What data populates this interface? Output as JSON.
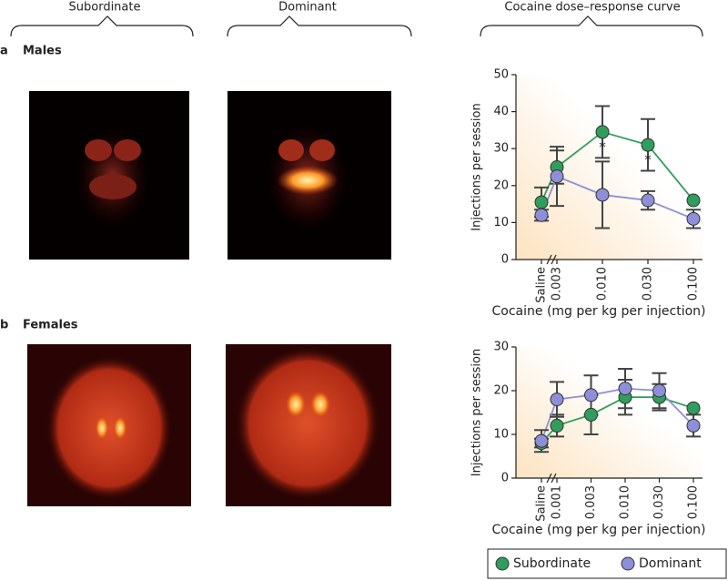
{
  "headers": [
    "Subordinate",
    "Dominant",
    "Cocaine dose–response curve"
  ],
  "panels": [
    {
      "letter": "a",
      "label": "Males"
    },
    {
      "letter": "b",
      "label": "Females"
    }
  ],
  "chart_data": [
    {
      "type": "line",
      "y_label": "Injections per session",
      "x_label": "Cocaine (mg per kg per injection)",
      "categories": [
        "Saline",
        "0.003",
        "0.010",
        "0.030",
        "0.100"
      ],
      "ylim": [
        0,
        50
      ],
      "yticks": [
        0,
        10,
        20,
        30,
        40,
        50
      ],
      "series": [
        {
          "name": "Subordinate",
          "color": "#2f9e5c",
          "values": [
            15.5,
            25,
            34.5,
            31,
            16
          ],
          "errors": [
            4,
            4.5,
            7,
            7,
            0
          ],
          "annotations": [
            null,
            null,
            "*",
            "*",
            null
          ]
        },
        {
          "name": "Dominant",
          "color": "#8e8fd9",
          "values": [
            12,
            22.5,
            17.5,
            16,
            11
          ],
          "errors": [
            1.5,
            8,
            9,
            2.5,
            2.5
          ]
        }
      ]
    },
    {
      "type": "line",
      "y_label": "Injections per session",
      "x_label": "Cocaine (mg per kg per injection)",
      "categories": [
        "Saline",
        "0.001",
        "0.003",
        "0.010",
        "0.030",
        "0.100"
      ],
      "ylim": [
        0,
        30
      ],
      "yticks": [
        0,
        10,
        20,
        30
      ],
      "series": [
        {
          "name": "Subordinate",
          "color": "#2f9e5c",
          "values": [
            8,
            12,
            14.5,
            18.5,
            18.5,
            16
          ],
          "errors": [
            1,
            2.5,
            4.5,
            4,
            3,
            0
          ]
        },
        {
          "name": "Dominant",
          "color": "#8e8fd9",
          "values": [
            8.5,
            18,
            19,
            20.5,
            20,
            12
          ],
          "errors": [
            2.5,
            4,
            4.5,
            4.5,
            4,
            2.5
          ]
        }
      ]
    }
  ]
}
